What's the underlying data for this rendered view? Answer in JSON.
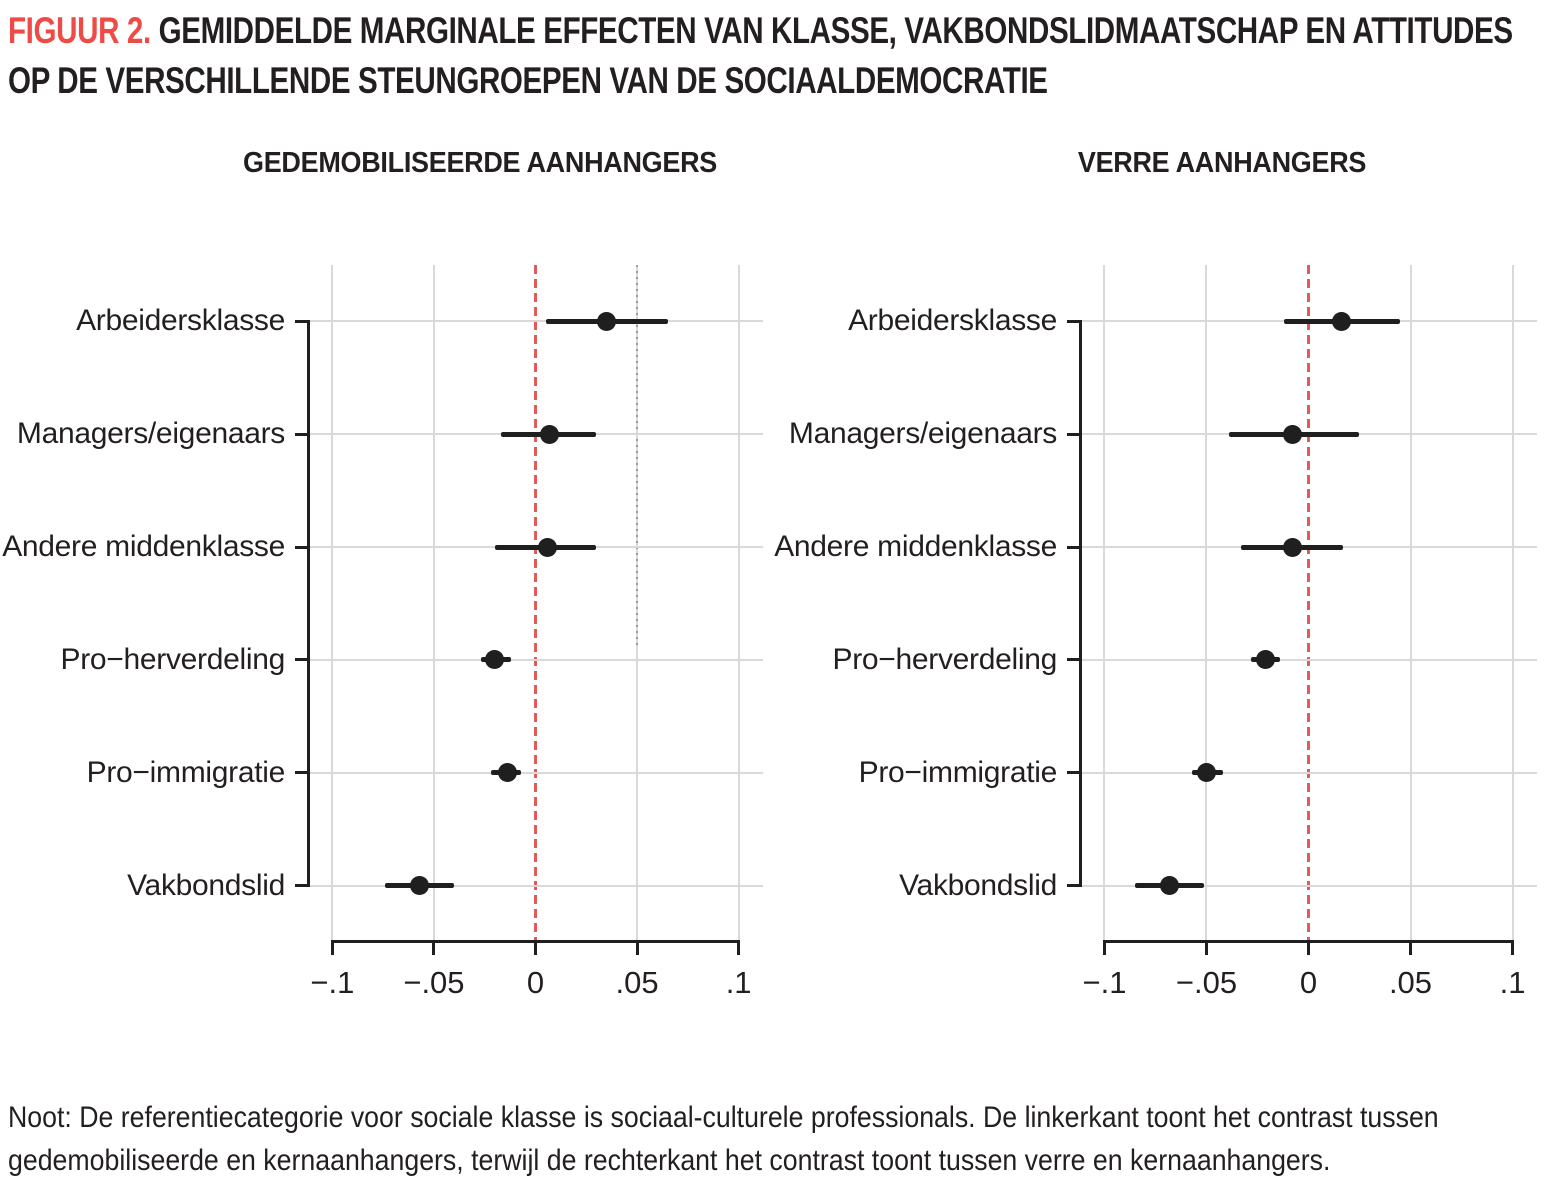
{
  "figure": {
    "label": "FIGUUR 2.",
    "title_line1": "GEMIDDELDE MARGINALE EFFECTEN VAN KLASSE, VAKBONDSLIDMAATSCHAP EN ATTITUDES",
    "title_line2": "OP DE VERSCHILLENDE STEUNGROEPEN VAN DE SOCIAALDEMOCRATIE"
  },
  "note": {
    "line1": "Noot: De referentiecategorie voor sociale klasse is sociaal-culturele professionals. De linkerkant toont het contrast tussen",
    "line2": "gedemobiliseerde en kernaanhangers, terwijl de rechterkant het contrast toont tussen verre en kernaanhangers."
  },
  "colors": {
    "figure_label_red": "#ef4b46",
    "zero_line_red": "#e25b57",
    "grid_gray": "#d9d9d9",
    "ink": "#231f20"
  },
  "chart_data": {
    "type": "scatter",
    "subtype": "horizontal dot-and-whisker coefficient plot, two panels",
    "categories": [
      "Arbeidersklasse",
      "Managers/eigenaars",
      "Andere middenklasse",
      "Pro−herverdeling",
      "Pro−immigratie",
      "Vakbondslid"
    ],
    "x_ticks": [
      -0.1,
      -0.05,
      0,
      0.05,
      0.1
    ],
    "x_tick_labels": [
      "−.1",
      "−.05",
      "0",
      ".05",
      ".1"
    ],
    "xlim": [
      -0.112,
      0.112
    ],
    "grid": "light gray vertical gridlines at ticks and horizontal gridlines at each category",
    "zero_reference_line": "red dashed vertical line at 0",
    "legend": "none",
    "panels": [
      {
        "title": "GEDEMOBILISEERDE AANHANGERS",
        "series": [
          {
            "name": "gemiddeld marginaal effect",
            "values": [
              0.035,
              0.007,
              0.006,
              -0.02,
              -0.014,
              -0.057
            ],
            "ci_low": [
              0.005,
              -0.017,
              -0.02,
              -0.027,
              -0.022,
              -0.074
            ],
            "ci_high": [
              0.065,
              0.03,
              0.03,
              -0.012,
              -0.007,
              -0.04
            ]
          }
        ],
        "dotted_gridline_at": 0.05
      },
      {
        "title": "VERRE AANHANGERS",
        "series": [
          {
            "name": "gemiddeld marginaal effect",
            "values": [
              0.016,
              -0.008,
              -0.008,
              -0.021,
              -0.05,
              -0.068
            ],
            "ci_low": [
              -0.012,
              -0.039,
              -0.033,
              -0.028,
              -0.057,
              -0.085
            ],
            "ci_high": [
              0.045,
              0.025,
              0.017,
              -0.014,
              -0.042,
              -0.051
            ]
          }
        ],
        "dotted_gridline_at": null
      }
    ]
  }
}
